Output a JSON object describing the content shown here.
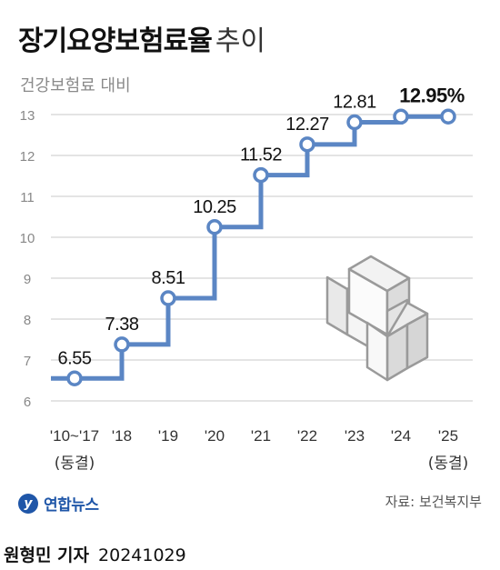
{
  "header": {
    "title_main": "장기요양보험료율",
    "title_sub": "추이",
    "subtitle": "건강보험료 대비"
  },
  "footer": {
    "logo": "연합뉴스",
    "source": "자료: 보건복지부",
    "reporter": "원형민 기자",
    "date": "20241029"
  },
  "colors": {
    "line": "#5b86c4",
    "grid": "#d3d3d3",
    "marker_fill": "#ffffff",
    "text": "#111111",
    "tick": "#888888"
  },
  "chart_data": {
    "type": "line",
    "step": true,
    "title": "장기요양보험료율 추이",
    "subtitle": "건강보험료 대비",
    "categories": [
      "'10~'17",
      "'18",
      "'19",
      "'20",
      "'21",
      "'22",
      "'23",
      "'24",
      "'25"
    ],
    "category_notes": [
      "(동결)",
      "",
      "",
      "",
      "",
      "",
      "",
      "",
      "(동결)"
    ],
    "values": [
      6.55,
      7.38,
      8.51,
      10.25,
      11.52,
      12.27,
      12.81,
      12.95,
      12.95
    ],
    "labels": [
      "6.55",
      "7.38",
      "8.51",
      "10.25",
      "11.52",
      "12.27",
      "12.81",
      "12.95%",
      ""
    ],
    "highlight_label_index": 7,
    "yticks": [
      6,
      7,
      8,
      9,
      10,
      11,
      12,
      13
    ],
    "ylim": [
      6,
      13
    ],
    "grid": true,
    "legend": "none",
    "decoration": "plus-cross-icon"
  }
}
